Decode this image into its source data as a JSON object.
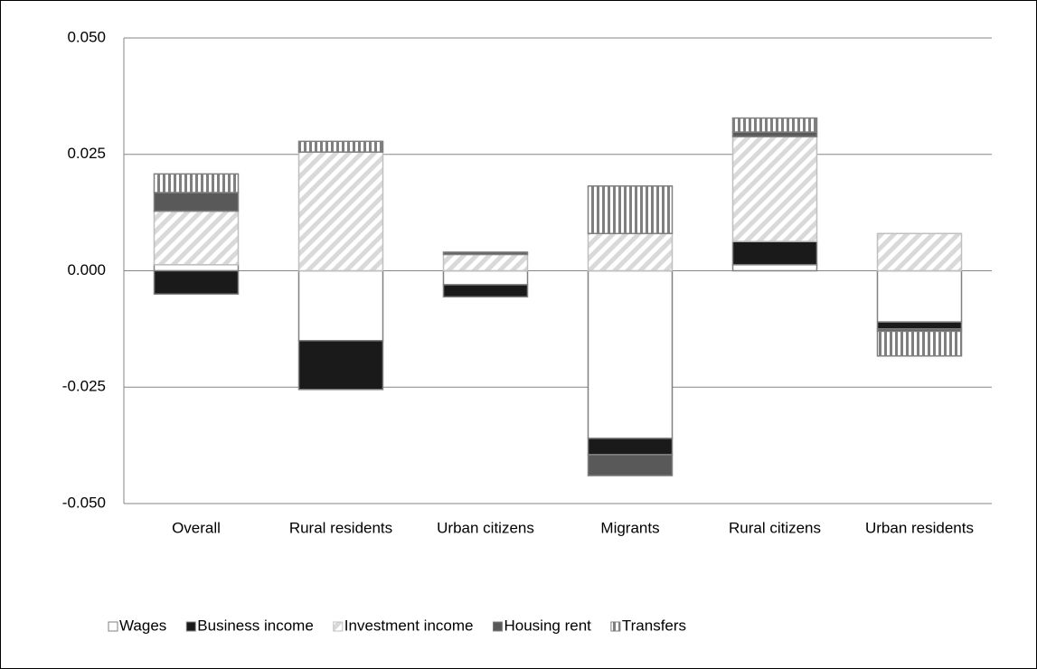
{
  "chart_data": {
    "type": "stacked_bar",
    "categories": [
      "Overall",
      "Rural residents",
      "Urban citizens",
      "Migrants",
      "Rural citizens",
      "Urban residents"
    ],
    "series": [
      {
        "name": "Wages",
        "color": "#ffffff",
        "pattern": "none",
        "values": [
          0.0013,
          -0.015,
          -0.003,
          -0.036,
          0.0013,
          -0.011
        ]
      },
      {
        "name": "Business income",
        "color": "#1a1a1a",
        "pattern": "none",
        "values": [
          -0.005,
          -0.0105,
          -0.0026,
          -0.0035,
          0.005,
          -0.0015
        ]
      },
      {
        "name": "Investment income",
        "color": "#d9d9d9",
        "pattern": "diagonal",
        "values": [
          0.0115,
          0.0255,
          0.0035,
          0.008,
          0.0225,
          0.008
        ]
      },
      {
        "name": "Housing rent",
        "color": "#595959",
        "pattern": "none",
        "values": [
          0.004,
          0,
          0.0005,
          -0.0045,
          0.001,
          -0.0005
        ]
      },
      {
        "name": "Transfers",
        "color": "#7f7f7f",
        "pattern": "vertical",
        "values": [
          0.004,
          0.0023,
          0,
          0.0102,
          0.003,
          -0.0053
        ]
      }
    ],
    "ylim": [
      -0.05,
      0.05
    ],
    "yticks": [
      {
        "value": -0.05,
        "label": "-0.050"
      },
      {
        "value": -0.025,
        "label": "-0.025"
      },
      {
        "value": 0,
        "label": "0.000"
      },
      {
        "value": 0.025,
        "label": "0.025"
      },
      {
        "value": 0.05,
        "label": "0.050"
      }
    ],
    "grid": true,
    "legend": "bottom"
  }
}
